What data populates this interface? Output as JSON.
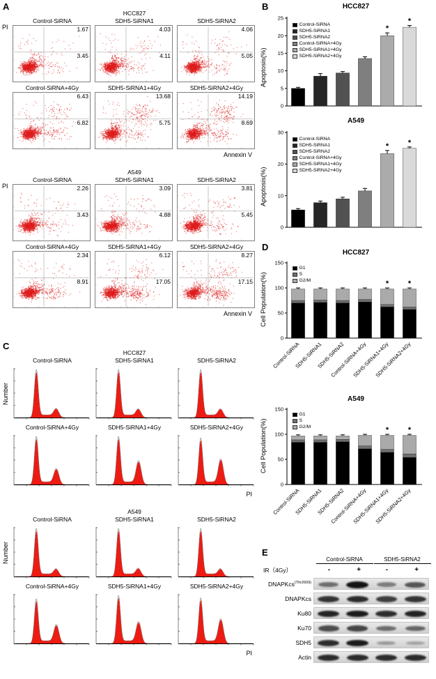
{
  "panels": {
    "A": {
      "label": "A",
      "y_axis": "PI",
      "x_axis": "Annexin V",
      "blocks": [
        {
          "cell_line": "HCC827",
          "rows": [
            {
              "plots": [
                {
                  "title": "Control-SiRNA",
                  "ur": "1.67",
                  "lr": "3.45"
                },
                {
                  "title": "SDH5-SiRNA1",
                  "ur": "4.03",
                  "lr": "4.11"
                },
                {
                  "title": "SDH5-SiRNA2",
                  "ur": "4.06",
                  "lr": "5.05"
                }
              ]
            },
            {
              "plots": [
                {
                  "title": "Control-SiRNA+4Gy",
                  "ur": "6.43",
                  "lr": "6.82"
                },
                {
                  "title": "SDH5-SiRNA1+4Gy",
                  "ur": "13.68",
                  "lr": "5.75"
                },
                {
                  "title": "SDH5-SiRNA2+4Gy",
                  "ur": "14.19",
                  "lr": "8.69"
                }
              ]
            }
          ]
        },
        {
          "cell_line": "A549",
          "rows": [
            {
              "plots": [
                {
                  "title": "Control-SiRNA",
                  "ur": "2.26",
                  "lr": "3.43"
                },
                {
                  "title": "SDH5-SiRNA1",
                  "ur": "3.09",
                  "lr": "4.88"
                },
                {
                  "title": "SDH5-SiRNA2",
                  "ur": "3.81",
                  "lr": "5.45"
                }
              ]
            },
            {
              "plots": [
                {
                  "title": "Control-SiRNA+4Gy",
                  "ur": "2.34",
                  "lr": "8.91"
                },
                {
                  "title": "SDH5-SiRNA1+4Gy",
                  "ur": "6.12",
                  "lr": "17.05"
                },
                {
                  "title": "SDH5-SiRNA2+4Gy",
                  "ur": "8.27",
                  "lr": "17.15"
                }
              ]
            }
          ]
        }
      ]
    },
    "B": {
      "label": "B"
    },
    "C": {
      "label": "C",
      "y_axis": "Number",
      "x_axis": "PI",
      "blocks": [
        {
          "cell_line": "HCC827",
          "rows": [
            {
              "plots": [
                {
                  "title": "Control-SiRNA",
                  "g1_peak": 0.95,
                  "g2_peak": 0.16
                },
                {
                  "title": "SDH5-SiRNA1",
                  "g1_peak": 0.95,
                  "g2_peak": 0.15
                },
                {
                  "title": "SDH5-SiRNA2",
                  "g1_peak": 0.95,
                  "g2_peak": 0.15
                }
              ]
            },
            {
              "plots": [
                {
                  "title": "Control-SiRNA+4Gy",
                  "g1_peak": 0.95,
                  "g2_peak": 0.3
                },
                {
                  "title": "SDH5-SiRNA1+4Gy",
                  "g1_peak": 0.95,
                  "g2_peak": 0.46
                },
                {
                  "title": "SDH5-SiRNA2+4Gy",
                  "g1_peak": 0.92,
                  "g2_peak": 0.5
                }
              ]
            }
          ]
        },
        {
          "cell_line": "A549",
          "rows": [
            {
              "plots": [
                {
                  "title": "Control-SiRNA",
                  "g1_peak": 0.95,
                  "g2_peak": 0.13
                },
                {
                  "title": "SDH5-SiRNA1",
                  "g1_peak": 0.95,
                  "g2_peak": 0.14
                },
                {
                  "title": "SDH5-SiRNA2",
                  "g1_peak": 0.95,
                  "g2_peak": 0.13
                }
              ]
            },
            {
              "plots": [
                {
                  "title": "Control-SiRNA+4Gy",
                  "g1_peak": 0.88,
                  "g2_peak": 0.36
                },
                {
                  "title": "SDH5-SiRNA1+4Gy",
                  "g1_peak": 0.95,
                  "g2_peak": 0.42
                },
                {
                  "title": "SDH5-SiRNA2+4Gy",
                  "g1_peak": 0.9,
                  "g2_peak": 0.48
                }
              ]
            }
          ]
        }
      ]
    },
    "D": {
      "label": "D"
    },
    "E": {
      "label": "E",
      "group_labels": [
        "Control-SiRNA",
        "SDH5-SiRNA2"
      ],
      "ir_label": "IR（4Gy）",
      "lane_signs": [
        "-",
        "+",
        "-",
        "+"
      ],
      "blots": [
        {
          "name": "DNAPKcs",
          "sup": "(Thr2609)",
          "bands": [
            0.45,
            1.0,
            0.35,
            0.6
          ]
        },
        {
          "name": "DNAPKcs",
          "sup": "",
          "bands": [
            0.8,
            0.85,
            0.75,
            0.8
          ]
        },
        {
          "name": "Ku80",
          "sup": "",
          "bands": [
            0.9,
            0.95,
            0.85,
            0.9
          ]
        },
        {
          "name": "Ku70",
          "sup": "",
          "bands": [
            0.65,
            0.7,
            0.45,
            0.5
          ]
        },
        {
          "name": "SDH5",
          "sup": "",
          "bands": [
            0.85,
            0.95,
            0.18,
            0.12
          ]
        },
        {
          "name": "Actin",
          "sup": "",
          "bands": [
            0.85,
            0.85,
            0.85,
            0.85
          ]
        }
      ]
    }
  },
  "chart_data": [
    {
      "id": "B-HCC827",
      "type": "bar",
      "title": "HCC827",
      "ylabel": "Apoptosis(%)",
      "ylim": [
        0,
        25
      ],
      "yticks": [
        0,
        5,
        10,
        15,
        20,
        25
      ],
      "categories": [
        "Control-SiRNA",
        "SDH5-SiRNA1",
        "SDH5-SiRNA2",
        "Control-SiRNA+4Gy",
        "SDH5-SiRNA1+4Gy",
        "SDH5-SiRNA2+4Gy"
      ],
      "values": [
        5.0,
        8.5,
        9.4,
        13.5,
        20.0,
        22.4
      ],
      "errors": [
        0.3,
        0.7,
        0.4,
        0.5,
        0.8,
        0.5
      ],
      "sig": [
        "",
        "",
        "",
        "",
        "*",
        "*"
      ],
      "colors": [
        "#000000",
        "#262626",
        "#525252",
        "#7f7f7f",
        "#ababab",
        "#d9d9d9"
      ],
      "legend_position": "top-left"
    },
    {
      "id": "B-A549",
      "type": "bar",
      "title": "A549",
      "ylabel": "Apoptosis(%)",
      "ylim": [
        0,
        30
      ],
      "yticks": [
        0,
        10,
        20,
        30
      ],
      "categories": [
        "Control-SiRNA",
        "SDH5-SiRNA1",
        "SDH5-SiRNA2",
        "Control-SiRNA+4Gy",
        "SDH5-SiRNA1+4Gy",
        "SDH5-SiRNA2+4Gy"
      ],
      "values": [
        5.5,
        7.8,
        9.0,
        11.5,
        23.3,
        25.0
      ],
      "errors": [
        0.4,
        0.5,
        0.5,
        0.8,
        1.0,
        0.4
      ],
      "sig": [
        "",
        "",
        "",
        "",
        "*",
        "*"
      ],
      "colors": [
        "#000000",
        "#262626",
        "#525252",
        "#7f7f7f",
        "#ababab",
        "#d9d9d9"
      ],
      "legend_position": "top-left"
    },
    {
      "id": "D-HCC827",
      "type": "stacked-bar",
      "title": "HCC827",
      "ylabel": "Cell Population(%)",
      "ylim": [
        0,
        150
      ],
      "yticks": [
        0,
        50,
        100,
        150
      ],
      "categories": [
        "Control-SiRNA",
        "SDH5-SiRNA1",
        "SDH5-SiRNA2",
        "Control-SiRNA+4Gy",
        "SDH5-SiRNA1+4Gy",
        "SDH5-SiRNA2+4Gy"
      ],
      "series": [
        {
          "name": "G1",
          "color": "#000000",
          "values": [
            70,
            71,
            70,
            72,
            62,
            57
          ]
        },
        {
          "name": "S",
          "color": "#6f6f6f",
          "values": [
            5,
            5,
            5,
            5,
            5,
            5
          ]
        },
        {
          "name": "G2/M",
          "color": "#aaaaaa",
          "values": [
            23,
            22,
            23,
            21,
            31,
            36
          ]
        }
      ],
      "errors": [
        2,
        2,
        2,
        2,
        2,
        2
      ],
      "sig": [
        "",
        "",
        "",
        "",
        "*",
        "*"
      ],
      "legend_position": "top-left"
    },
    {
      "id": "D-A549",
      "type": "stacked-bar",
      "title": "A549",
      "ylabel": "Cell Population(%)",
      "ylim": [
        0,
        150
      ],
      "yticks": [
        0,
        50,
        100,
        150
      ],
      "categories": [
        "Control-SiRNA",
        "SDH5-SiRNA1",
        "SDH5-SiRNA2",
        "Control-SiRNA+4Gy",
        "SDH5-SiRNA1+4Gy",
        "SDH5-SiRNA2+4Gy"
      ],
      "series": [
        {
          "name": "G1",
          "color": "#000000",
          "values": [
            84,
            84,
            85,
            71,
            64,
            54
          ]
        },
        {
          "name": "S",
          "color": "#6f6f6f",
          "values": [
            5,
            5,
            5,
            6,
            6,
            7
          ]
        },
        {
          "name": "G2/M",
          "color": "#aaaaaa",
          "values": [
            8,
            8,
            7,
            21,
            28,
            37
          ]
        }
      ],
      "errors": [
        2,
        2,
        2,
        2,
        2,
        2
      ],
      "sig": [
        "",
        "",
        "",
        "",
        "*",
        "*"
      ],
      "legend_position": "top-left"
    }
  ]
}
